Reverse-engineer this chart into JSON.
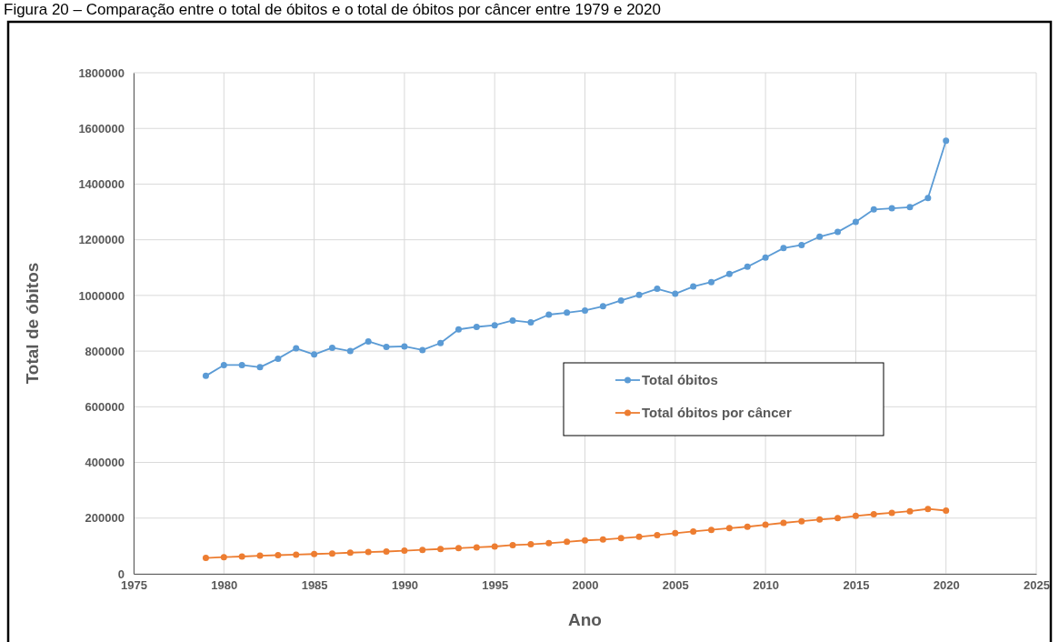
{
  "chart_data": {
    "type": "line",
    "title": "Figura 20 – Comparação entre o total de óbitos e o total de óbitos por câncer entre 1979 e 2020",
    "xlabel": "Ano",
    "ylabel": "Total de óbitos",
    "x": [
      1979,
      1980,
      1981,
      1982,
      1983,
      1984,
      1985,
      1986,
      1987,
      1988,
      1989,
      1990,
      1991,
      1992,
      1993,
      1994,
      1995,
      1996,
      1997,
      1998,
      1999,
      2000,
      2001,
      2002,
      2003,
      2004,
      2005,
      2006,
      2007,
      2008,
      2009,
      2010,
      2011,
      2012,
      2013,
      2014,
      2015,
      2016,
      2017,
      2018,
      2019,
      2020
    ],
    "series": [
      {
        "name": "Total óbitos",
        "color": "#5b9bd5",
        "values": [
          711000,
          750000,
          750000,
          742000,
          773000,
          810000,
          788000,
          812000,
          800000,
          835000,
          815000,
          817000,
          804000,
          829000,
          878000,
          887000,
          893000,
          910000,
          903000,
          931000,
          938000,
          946000,
          961000,
          982000,
          1002000,
          1024000,
          1006000,
          1032000,
          1048000,
          1077000,
          1103000,
          1136000,
          1170000,
          1181000,
          1211000,
          1228000,
          1264000,
          1309000,
          1313000,
          1317000,
          1350000,
          1556000
        ]
      },
      {
        "name": "Total óbitos por câncer",
        "color": "#ed7d31",
        "values": [
          57000,
          60000,
          62000,
          65000,
          67000,
          69000,
          71000,
          73000,
          76000,
          78000,
          80000,
          83000,
          86000,
          89000,
          92000,
          95000,
          98000,
          103000,
          106000,
          110000,
          115000,
          120000,
          123000,
          128000,
          133000,
          139000,
          146000,
          152000,
          158000,
          164000,
          169000,
          176000,
          183000,
          189000,
          195000,
          200000,
          208000,
          214000,
          219000,
          225000,
          233000,
          227000
        ]
      }
    ],
    "xlim": [
      1975,
      2025
    ],
    "xticks": [
      1975,
      1980,
      1985,
      1990,
      1995,
      2000,
      2005,
      2010,
      2015,
      2020,
      2025
    ],
    "ylim": [
      0,
      1800000
    ],
    "yticks": [
      0,
      200000,
      400000,
      600000,
      800000,
      1000000,
      1200000,
      1400000,
      1600000,
      1800000
    ],
    "grid": true,
    "legend": "center",
    "marker": "circle",
    "line_style": "solid"
  }
}
